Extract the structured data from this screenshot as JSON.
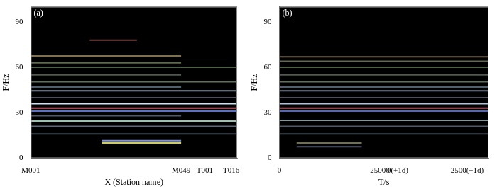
{
  "chart_data": [
    {
      "type": "line",
      "title": "(a)",
      "x_label": "X (Station name)",
      "y_label": "F/Hz",
      "xlim": [
        0,
        70
      ],
      "xticks": [
        {
          "value": 0,
          "label": "M001"
        },
        {
          "value": 51,
          "label": "M049"
        },
        {
          "value": 59,
          "label": "T001"
        },
        {
          "value": 68,
          "label": "T016"
        }
      ],
      "ylim": [
        0,
        100
      ],
      "yticks": [
        0,
        30,
        60,
        90
      ],
      "grid": false,
      "series": [
        {
          "color": "#d0e0f0",
          "x": [
            0,
            70
          ],
          "values": [
            36,
            36
          ]
        },
        {
          "color": "#c06070",
          "x": [
            0,
            70
          ],
          "values": [
            33,
            33
          ]
        },
        {
          "color": "#6070c0",
          "x": [
            0,
            70
          ],
          "values": [
            31,
            31
          ]
        },
        {
          "color": "#505868",
          "x": [
            0,
            51
          ],
          "values": [
            28,
            28
          ]
        },
        {
          "color": "#a0c0b0",
          "x": [
            0,
            70
          ],
          "values": [
            24.5,
            24.5
          ]
        },
        {
          "color": "#606878",
          "x": [
            0,
            70
          ],
          "values": [
            21,
            21
          ]
        },
        {
          "color": "#404850",
          "x": [
            0,
            70
          ],
          "values": [
            16,
            16
          ]
        },
        {
          "color": "#d0d040",
          "x": [
            24,
            51
          ],
          "values": [
            10,
            10
          ]
        },
        {
          "color": "#8090d0",
          "x": [
            24,
            51
          ],
          "values": [
            11.5,
            11.5
          ]
        },
        {
          "color": "#505060",
          "x": [
            0,
            70
          ],
          "values": [
            40,
            40
          ]
        },
        {
          "color": "#8090a0",
          "x": [
            0,
            70
          ],
          "values": [
            44.5,
            44.5
          ]
        },
        {
          "color": "#506070",
          "x": [
            0,
            51
          ],
          "values": [
            47,
            47
          ]
        },
        {
          "color": "#607060",
          "x": [
            0,
            70
          ],
          "values": [
            50.5,
            50.5
          ]
        },
        {
          "color": "#505850",
          "x": [
            0,
            51
          ],
          "values": [
            55,
            55
          ]
        },
        {
          "color": "#506048",
          "x": [
            0,
            70
          ],
          "values": [
            60,
            60
          ]
        },
        {
          "color": "#606850",
          "x": [
            0,
            51
          ],
          "values": [
            63,
            63
          ]
        },
        {
          "color": "#807050",
          "x": [
            0,
            51
          ],
          "values": [
            67.5,
            67.5
          ]
        },
        {
          "color": "#704040",
          "x": [
            20,
            36
          ],
          "values": [
            78,
            78
          ]
        }
      ]
    },
    {
      "type": "line",
      "title": "(b)",
      "x_label": "T/s",
      "y_label": "F/Hz",
      "xlim": [
        0,
        52000
      ],
      "xticks": [
        {
          "value": 0,
          "label": "0"
        },
        {
          "value": 25000,
          "label": "25000"
        },
        {
          "value": 29400,
          "label": "0(+1d)"
        },
        {
          "value": 46700,
          "label": "2500(+1d)"
        }
      ],
      "ylim": [
        0,
        100
      ],
      "yticks": [
        0,
        30,
        60,
        90
      ],
      "grid": false,
      "series": [
        {
          "color": "#b0c0d8",
          "x": [
            0,
            52000
          ],
          "values": [
            36,
            36
          ]
        },
        {
          "color": "#b05868",
          "x": [
            0,
            52000
          ],
          "values": [
            33,
            33
          ]
        },
        {
          "color": "#5868b0",
          "x": [
            0,
            52000
          ],
          "values": [
            31,
            31
          ]
        },
        {
          "color": "#8098a0",
          "x": [
            0,
            52000
          ],
          "values": [
            25,
            25
          ]
        },
        {
          "color": "#505868",
          "x": [
            0,
            52000
          ],
          "values": [
            21,
            21
          ]
        },
        {
          "color": "#404850",
          "x": [
            0,
            52000
          ],
          "values": [
            16,
            16
          ]
        },
        {
          "color": "#707050",
          "x": [
            4300,
            20500
          ],
          "values": [
            10,
            10
          ]
        },
        {
          "color": "#505a70",
          "x": [
            4300,
            20500
          ],
          "values": [
            7.5,
            7.5
          ]
        },
        {
          "color": "#505060",
          "x": [
            0,
            52000
          ],
          "values": [
            40,
            40
          ]
        },
        {
          "color": "#708090",
          "x": [
            0,
            52000
          ],
          "values": [
            44.5,
            44.5
          ]
        },
        {
          "color": "#506070",
          "x": [
            0,
            52000
          ],
          "values": [
            47,
            47
          ]
        },
        {
          "color": "#607060",
          "x": [
            0,
            52000
          ],
          "values": [
            50.5,
            50.5
          ]
        },
        {
          "color": "#505850",
          "x": [
            0,
            52000
          ],
          "values": [
            55,
            55
          ]
        },
        {
          "color": "#506048",
          "x": [
            0,
            52000
          ],
          "values": [
            60,
            60
          ]
        },
        {
          "color": "#606850",
          "x": [
            0,
            52000
          ],
          "values": [
            64,
            64
          ]
        },
        {
          "color": "#706048",
          "x": [
            0,
            52000
          ],
          "values": [
            67,
            67
          ]
        }
      ]
    }
  ]
}
